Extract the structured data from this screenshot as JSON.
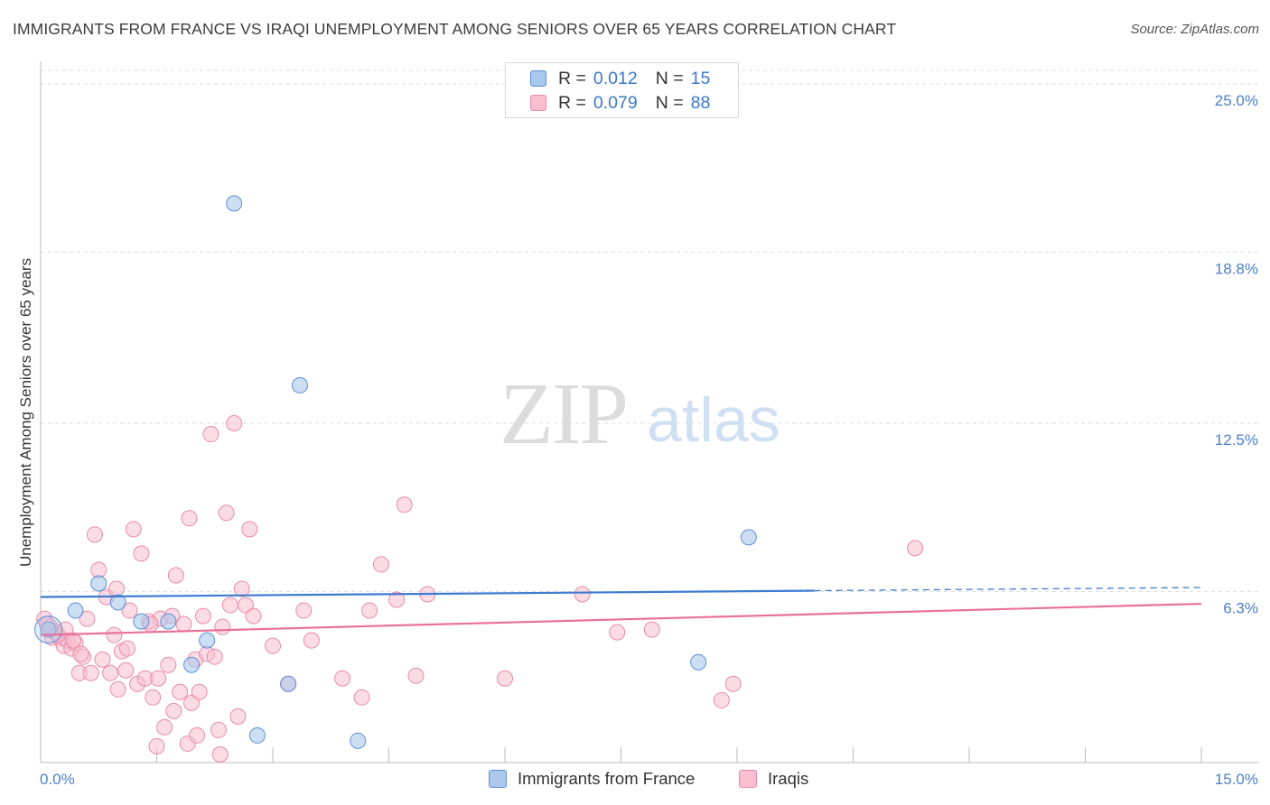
{
  "title": "IMMIGRANTS FROM FRANCE VS IRAQI UNEMPLOYMENT AMONG SENIORS OVER 65 YEARS CORRELATION CHART",
  "source": "Source: ZipAtlas.com",
  "watermark": {
    "zip": "ZIP",
    "atlas": "atlas"
  },
  "legend_top": [
    {
      "r_label": "R =",
      "r_value": "0.012",
      "n_label": "N =",
      "n_value": "15"
    },
    {
      "r_label": "R =",
      "r_value": "0.079",
      "n_label": "N =",
      "n_value": "88"
    }
  ],
  "legend_bottom": [
    {
      "label": "Immigrants from France"
    },
    {
      "label": "Iraqis"
    }
  ],
  "colors": {
    "blue_fill": "#aac8ec",
    "blue_stroke": "#5b8fd6",
    "blue_line": "#3d7bd0",
    "pink_fill": "#f7bfd0",
    "pink_stroke": "#e98aa8",
    "pink_line": "#e8719a",
    "axis_text": "#4a7fc8",
    "grid": "#dddddd"
  },
  "chart_data": {
    "type": "scatter",
    "title": "IMMIGRANTS FROM FRANCE VS IRAQI UNEMPLOYMENT AMONG SENIORS OVER 65 YEARS CORRELATION CHART",
    "xlabel": "",
    "ylabel": "Unemployment Among Seniors over 65 years",
    "xlim": [
      0,
      15
    ],
    "ylim": [
      0,
      25.5
    ],
    "x_tick_labels": [
      "0.0%",
      "15.0%"
    ],
    "y_ticks": [
      6.3,
      12.5,
      18.8,
      25.0
    ],
    "y_tick_labels": [
      "6.3%",
      "12.5%",
      "18.8%",
      "25.0%"
    ],
    "series": [
      {
        "name": "Immigrants from France",
        "r": 0.012,
        "n": 15,
        "trend": {
          "x_start": 0,
          "x_end": 15,
          "y_start": 6.1,
          "y_end": 6.45,
          "solid_until_x": 10
        },
        "points": [
          {
            "x": 0.1,
            "y": 4.9
          },
          {
            "x": 0.45,
            "y": 5.6
          },
          {
            "x": 0.75,
            "y": 6.6
          },
          {
            "x": 1.0,
            "y": 5.9
          },
          {
            "x": 1.3,
            "y": 5.2
          },
          {
            "x": 1.65,
            "y": 5.2
          },
          {
            "x": 1.95,
            "y": 3.6
          },
          {
            "x": 2.15,
            "y": 4.5
          },
          {
            "x": 2.5,
            "y": 20.6
          },
          {
            "x": 2.8,
            "y": 1.0
          },
          {
            "x": 3.2,
            "y": 2.9
          },
          {
            "x": 3.35,
            "y": 13.9
          },
          {
            "x": 4.1,
            "y": 0.8
          },
          {
            "x": 8.5,
            "y": 3.7
          },
          {
            "x": 9.15,
            "y": 8.3
          }
        ]
      },
      {
        "name": "Iraqis",
        "r": 0.079,
        "n": 88,
        "trend": {
          "x_start": 0,
          "x_end": 15,
          "y_start": 4.7,
          "y_end": 5.85
        },
        "points": [
          {
            "x": 0.05,
            "y": 5.3
          },
          {
            "x": 0.1,
            "y": 4.9
          },
          {
            "x": 0.15,
            "y": 4.6
          },
          {
            "x": 0.2,
            "y": 4.8
          },
          {
            "x": 0.25,
            "y": 4.6
          },
          {
            "x": 0.3,
            "y": 4.3
          },
          {
            "x": 0.35,
            "y": 4.5
          },
          {
            "x": 0.4,
            "y": 4.2
          },
          {
            "x": 0.45,
            "y": 4.4
          },
          {
            "x": 0.5,
            "y": 3.3
          },
          {
            "x": 0.55,
            "y": 3.9
          },
          {
            "x": 0.6,
            "y": 5.3
          },
          {
            "x": 0.65,
            "y": 3.3
          },
          {
            "x": 0.7,
            "y": 8.4
          },
          {
            "x": 0.75,
            "y": 7.1
          },
          {
            "x": 0.8,
            "y": 3.8
          },
          {
            "x": 0.85,
            "y": 6.1
          },
          {
            "x": 0.9,
            "y": 3.3
          },
          {
            "x": 0.95,
            "y": 4.7
          },
          {
            "x": 1.0,
            "y": 2.7
          },
          {
            "x": 1.05,
            "y": 4.1
          },
          {
            "x": 1.1,
            "y": 3.4
          },
          {
            "x": 1.15,
            "y": 5.6
          },
          {
            "x": 1.2,
            "y": 8.6
          },
          {
            "x": 1.25,
            "y": 2.9
          },
          {
            "x": 1.3,
            "y": 7.7
          },
          {
            "x": 1.35,
            "y": 3.1
          },
          {
            "x": 1.4,
            "y": 5.2
          },
          {
            "x": 1.45,
            "y": 2.4
          },
          {
            "x": 1.5,
            "y": 0.6
          },
          {
            "x": 1.55,
            "y": 5.3
          },
          {
            "x": 1.6,
            "y": 1.3
          },
          {
            "x": 1.65,
            "y": 3.6
          },
          {
            "x": 1.7,
            "y": 5.4
          },
          {
            "x": 1.75,
            "y": 6.9
          },
          {
            "x": 1.8,
            "y": 2.6
          },
          {
            "x": 1.85,
            "y": 5.1
          },
          {
            "x": 1.9,
            "y": 0.7
          },
          {
            "x": 1.95,
            "y": 2.2
          },
          {
            "x": 2.0,
            "y": 3.8
          },
          {
            "x": 2.05,
            "y": 2.6
          },
          {
            "x": 2.1,
            "y": 5.4
          },
          {
            "x": 2.15,
            "y": 4.0
          },
          {
            "x": 2.2,
            "y": 12.1
          },
          {
            "x": 2.25,
            "y": 3.9
          },
          {
            "x": 2.3,
            "y": 1.2
          },
          {
            "x": 2.35,
            "y": 5.0
          },
          {
            "x": 2.4,
            "y": 9.2
          },
          {
            "x": 2.45,
            "y": 5.8
          },
          {
            "x": 2.5,
            "y": 12.5
          },
          {
            "x": 2.55,
            "y": 1.7
          },
          {
            "x": 2.6,
            "y": 6.4
          },
          {
            "x": 2.65,
            "y": 5.8
          },
          {
            "x": 2.7,
            "y": 8.6
          },
          {
            "x": 2.75,
            "y": 5.4
          },
          {
            "x": 3.0,
            "y": 4.3
          },
          {
            "x": 3.2,
            "y": 2.9
          },
          {
            "x": 3.4,
            "y": 5.6
          },
          {
            "x": 3.5,
            "y": 4.5
          },
          {
            "x": 3.9,
            "y": 3.1
          },
          {
            "x": 4.15,
            "y": 2.4
          },
          {
            "x": 4.25,
            "y": 5.6
          },
          {
            "x": 4.4,
            "y": 7.3
          },
          {
            "x": 4.6,
            "y": 6.0
          },
          {
            "x": 4.7,
            "y": 9.5
          },
          {
            "x": 4.85,
            "y": 3.2
          },
          {
            "x": 5.0,
            "y": 6.2
          },
          {
            "x": 6.0,
            "y": 3.1
          },
          {
            "x": 7.0,
            "y": 6.2
          },
          {
            "x": 7.45,
            "y": 4.8
          },
          {
            "x": 7.9,
            "y": 4.9
          },
          {
            "x": 8.8,
            "y": 2.3
          },
          {
            "x": 8.95,
            "y": 2.9
          },
          {
            "x": 11.3,
            "y": 7.9
          },
          {
            "x": 0.12,
            "y": 5.0
          },
          {
            "x": 0.22,
            "y": 4.7
          },
          {
            "x": 0.32,
            "y": 4.9
          },
          {
            "x": 0.42,
            "y": 4.5
          },
          {
            "x": 0.52,
            "y": 4.0
          },
          {
            "x": 1.12,
            "y": 4.2
          },
          {
            "x": 1.52,
            "y": 3.1
          },
          {
            "x": 1.72,
            "y": 1.9
          },
          {
            "x": 2.02,
            "y": 1.0
          },
          {
            "x": 2.32,
            "y": 0.3
          },
          {
            "x": 1.42,
            "y": 5.1
          },
          {
            "x": 0.98,
            "y": 6.4
          },
          {
            "x": 1.92,
            "y": 9.0
          },
          {
            "x": 0.08,
            "y": 5.1
          }
        ]
      }
    ]
  }
}
